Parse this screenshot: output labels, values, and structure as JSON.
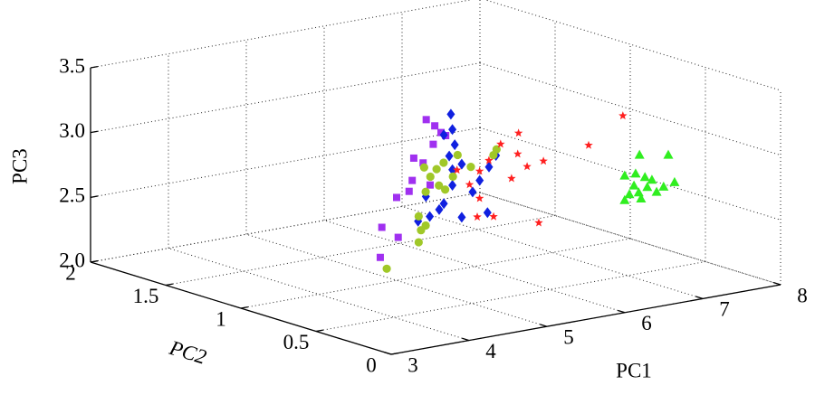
{
  "chart_data": {
    "type": "scatter3d",
    "xlabel": "PC1",
    "ylabel": "PC2",
    "zlabel": "PC3",
    "xlim": [
      3,
      8
    ],
    "xticks": [
      3,
      4,
      5,
      6,
      7,
      8
    ],
    "ylim": [
      0,
      2
    ],
    "yticks": [
      0,
      0.5,
      1,
      1.5,
      2
    ],
    "zlim": [
      2,
      3.5
    ],
    "zticks": [
      {
        "value": 2,
        "label": "2.0"
      },
      {
        "value": 2.5,
        "label": "2.5"
      },
      {
        "value": 3,
        "label": "3.0"
      },
      {
        "value": 3.5,
        "label": "3.5"
      }
    ],
    "grid": true,
    "series": [
      {
        "color": "#a030f0",
        "marker": "square",
        "x": [
          5.38,
          5.49,
          5.57,
          5.63,
          5.47,
          5.22,
          5.34,
          5.2,
          5.0,
          5.16,
          4.81,
          5.02,
          4.79,
          5.43
        ],
        "y": [
          1,
          1,
          1,
          1,
          1,
          1,
          1,
          1,
          1,
          1,
          1,
          1,
          1,
          1
        ],
        "z": [
          3.2,
          3.14,
          3.08,
          3.05,
          3.0,
          2.92,
          2.87,
          2.75,
          2.64,
          2.67,
          2.43,
          2.33,
          2.2,
          2.69
        ]
      },
      {
        "color": "#1020e0",
        "marker": "diamond",
        "x": [
          5.31,
          5.33,
          5.22,
          5.36,
          5.29,
          5.45,
          5.33,
          5.8,
          5.89,
          5.68,
          5.59,
          4.99,
          5.22,
          5.04,
          4.89,
          5.16,
          5.78,
          5.45,
          5.33
        ],
        "y": [
          0.8,
          0.8,
          0.8,
          0.8,
          0.8,
          0.8,
          0.8,
          0.8,
          0.8,
          0.8,
          0.8,
          0.8,
          0.8,
          0.8,
          0.8,
          0.8,
          0.8,
          0.8,
          0.8
        ],
        "z": [
          3.32,
          3.2,
          3.17,
          3.08,
          3.0,
          2.92,
          2.89,
          2.86,
          2.94,
          2.77,
          2.69,
          2.72,
          2.64,
          2.56,
          2.54,
          2.6,
          2.51,
          2.51,
          2.77
        ]
      },
      {
        "color": "#a0c828",
        "marker": "circle",
        "x": [
          6.09,
          6.05,
          5.59,
          5.41,
          5.32,
          5.16,
          5.24,
          5.53,
          5.35,
          5.43,
          5.18,
          5.09,
          5.18,
          5.12,
          5.09,
          4.68,
          5.76
        ],
        "y": [
          0.9,
          0.9,
          0.9,
          0.9,
          0.9,
          0.9,
          0.9,
          0.9,
          0.9,
          0.9,
          0.9,
          0.9,
          0.9,
          0.9,
          0.9,
          0.9,
          0.9
        ],
        "z": [
          2.93,
          2.89,
          2.94,
          2.9,
          2.86,
          2.89,
          2.81,
          2.78,
          2.73,
          2.69,
          2.7,
          2.52,
          2.44,
          2.41,
          2.32,
          2.16,
          2.83
        ]
      },
      {
        "color": "#ff2020",
        "marker": "star",
        "x": [
          6.94,
          6.5,
          5.6,
          5.37,
          5.59,
          5.92,
          5.71,
          5.22,
          5.51,
          5.1,
          4.97,
          5.1,
          5.28,
          5.07,
          5.86,
          4.81
        ],
        "y": [
          0.5,
          0.5,
          0.5,
          0.5,
          0.5,
          0.5,
          0.5,
          0.5,
          0.5,
          0.5,
          0.5,
          0.5,
          0.5,
          0.5,
          0.5,
          0.5
        ],
        "z": [
          3.24,
          3.06,
          3.25,
          3.19,
          3.09,
          3.0,
          2.98,
          3.08,
          2.91,
          3.01,
          2.92,
          2.8,
          2.64,
          2.66,
          2.53,
          3.05
        ]
      },
      {
        "color": "#30ee20",
        "marker": "triangle",
        "x": [
          7.33,
          6.96,
          6.91,
          6.77,
          7.03,
          7.12,
          6.89,
          7.06,
          7.41,
          6.83,
          6.98,
          7.18,
          6.77,
          6.95,
          7.27
        ],
        "y": [
          0.4,
          0.4,
          0.4,
          0.4,
          0.4,
          0.4,
          0.4,
          0.4,
          0.4,
          0.4,
          0.4,
          0.4,
          0.4,
          0.4,
          0.4
        ],
        "z": [
          2.93,
          2.97,
          2.83,
          2.83,
          2.79,
          2.76,
          2.74,
          2.71,
          2.71,
          2.68,
          2.63,
          2.66,
          2.64,
          2.68,
          2.69
        ]
      }
    ]
  }
}
